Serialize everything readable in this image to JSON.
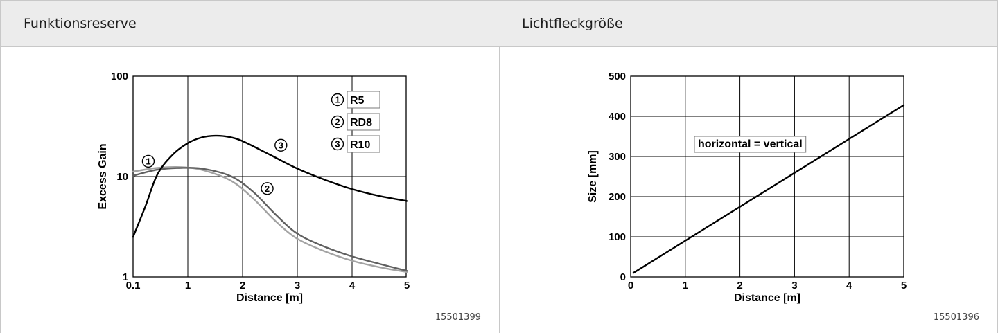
{
  "panels": [
    {
      "title": "Funktionsreserve",
      "figure_id": "15501399"
    },
    {
      "title": "Lichtfleckgröße",
      "figure_id": "15501396"
    }
  ],
  "chart_data": [
    {
      "type": "line",
      "title": "",
      "xlabel": "Distance [m]",
      "ylabel": "Excess Gain",
      "x_scale": "linear",
      "y_scale": "log",
      "xlim": [
        0.1,
        5
      ],
      "ylim": [
        1,
        100
      ],
      "x_ticks": [
        0.1,
        1,
        2,
        3,
        4,
        5
      ],
      "x_tick_labels": [
        "0.1",
        "1",
        "2",
        "3",
        "4",
        "5"
      ],
      "y_ticks": [
        1,
        10,
        100
      ],
      "y_tick_labels": [
        "1",
        "10",
        "100"
      ],
      "grid": true,
      "legend_position": "top-right",
      "legend": [
        {
          "marker": "1",
          "label": "R5"
        },
        {
          "marker": "2",
          "label": "RD8"
        },
        {
          "marker": "3",
          "label": "R10"
        }
      ],
      "series": [
        {
          "name": "R5",
          "marker": "1",
          "color": "#a3a3a3",
          "label_at": {
            "x": 0.35,
            "y": 14.2
          },
          "points": [
            [
              0.1,
              11.2
            ],
            [
              0.5,
              12.2
            ],
            [
              0.9,
              12.4
            ],
            [
              1.3,
              11.5
            ],
            [
              1.8,
              9.0
            ],
            [
              2.2,
              6.0
            ],
            [
              2.6,
              3.6
            ],
            [
              3.0,
              2.4
            ],
            [
              3.5,
              1.8
            ],
            [
              4.0,
              1.45
            ],
            [
              4.5,
              1.25
            ],
            [
              5.0,
              1.12
            ]
          ]
        },
        {
          "name": "RD8",
          "marker": "2",
          "color": "#606060",
          "label_at": {
            "x": 2.45,
            "y": 7.6
          },
          "points": [
            [
              0.1,
              10.2
            ],
            [
              0.5,
              11.7
            ],
            [
              0.9,
              12.2
            ],
            [
              1.3,
              11.9
            ],
            [
              1.8,
              10.0
            ],
            [
              2.2,
              7.0
            ],
            [
              2.6,
              4.2
            ],
            [
              3.0,
              2.7
            ],
            [
              3.5,
              2.0
            ],
            [
              4.0,
              1.6
            ],
            [
              4.5,
              1.35
            ],
            [
              5.0,
              1.15
            ]
          ]
        },
        {
          "name": "R10",
          "marker": "3",
          "color": "#000000",
          "label_at": {
            "x": 2.7,
            "y": 20.5
          },
          "points": [
            [
              0.1,
              2.5
            ],
            [
              0.3,
              5.0
            ],
            [
              0.5,
              10.5
            ],
            [
              0.75,
              16.5
            ],
            [
              1.0,
              21.5
            ],
            [
              1.25,
              24.5
            ],
            [
              1.5,
              25.5
            ],
            [
              1.75,
              24.8
            ],
            [
              2.0,
              22.5
            ],
            [
              2.5,
              16.5
            ],
            [
              3.0,
              12.0
            ],
            [
              3.5,
              9.3
            ],
            [
              4.0,
              7.5
            ],
            [
              4.5,
              6.4
            ],
            [
              5.0,
              5.7
            ]
          ]
        }
      ]
    },
    {
      "type": "line",
      "title": "",
      "xlabel": "Distance [m]",
      "ylabel": "Size [mm]",
      "x_scale": "linear",
      "y_scale": "linear",
      "xlim": [
        0,
        5
      ],
      "ylim": [
        0,
        500
      ],
      "x_ticks": [
        0,
        1,
        2,
        3,
        4,
        5
      ],
      "y_ticks": [
        0,
        100,
        200,
        300,
        400,
        500
      ],
      "grid": true,
      "annotation": "horizontal = vertical",
      "series": [
        {
          "name": "",
          "color": "#000000",
          "points": [
            [
              0.05,
              10
            ],
            [
              5.0,
              428
            ]
          ]
        }
      ]
    }
  ]
}
